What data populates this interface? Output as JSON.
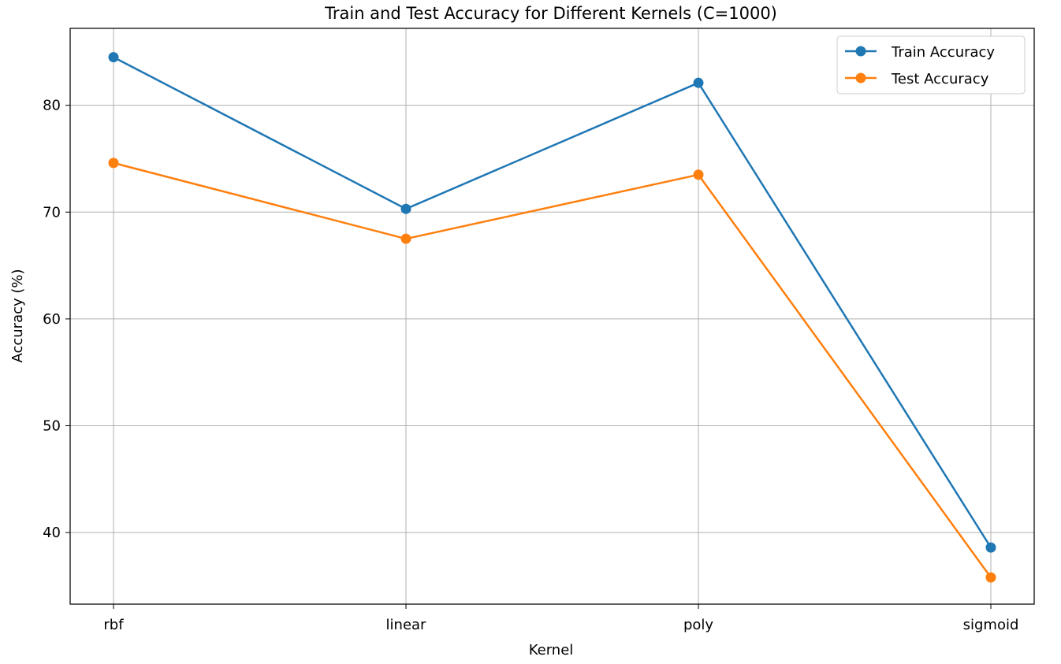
{
  "chart_data": {
    "type": "line",
    "title": "Train and Test Accuracy for Different Kernels (C=1000)",
    "xlabel": "Kernel",
    "ylabel": "Accuracy (%)",
    "categories": [
      "rbf",
      "linear",
      "poly",
      "sigmoid"
    ],
    "yticks": [
      40,
      50,
      60,
      70,
      80
    ],
    "ylim": [
      33.3,
      87.2
    ],
    "grid": true,
    "legend_position": "top-right",
    "series": [
      {
        "name": "Train Accuracy",
        "color": "#1f77b4",
        "values": [
          84.5,
          70.3,
          82.1,
          38.6
        ]
      },
      {
        "name": "Test Accuracy",
        "color": "#ff7f0e",
        "values": [
          74.6,
          67.5,
          73.5,
          35.8
        ]
      }
    ]
  }
}
